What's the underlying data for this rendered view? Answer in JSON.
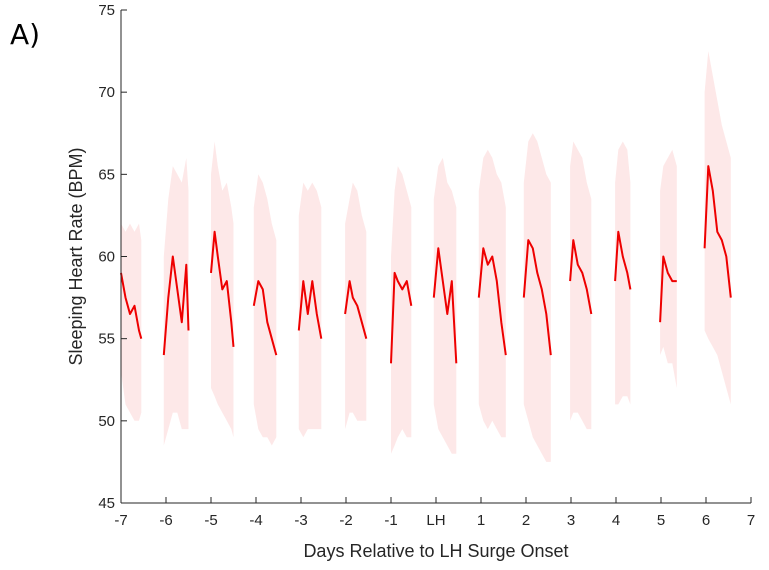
{
  "panel_label": "A)",
  "chart_data": {
    "type": "line",
    "title": "",
    "xlabel": "Days Relative to LH Surge Onset",
    "ylabel": "Sleeping Heart Rate (BPM)",
    "xlim": [
      -7,
      7
    ],
    "ylim": [
      45,
      75
    ],
    "yticks": [
      45,
      50,
      55,
      60,
      65,
      70,
      75
    ],
    "xticks": [
      -7,
      -6,
      -5,
      -4,
      -3,
      -2,
      -1,
      0,
      1,
      2,
      3,
      4,
      5,
      6,
      7
    ],
    "xtick_labels": [
      "-7",
      "-6",
      "-5",
      "-4",
      "-3",
      "-2",
      "-1",
      "LH",
      "1",
      "2",
      "3",
      "4",
      "5",
      "6",
      "7"
    ],
    "grid": false,
    "colors": {
      "line": "#ee0000",
      "band": "#fde8e8",
      "axis": "#262626"
    },
    "segments": [
      {
        "day": -7,
        "x": [
          -7.0,
          -6.9,
          -6.8,
          -6.7,
          -6.6,
          -6.55
        ],
        "mean": [
          59.0,
          57.5,
          56.5,
          57.0,
          55.5,
          55.0
        ],
        "lower": [
          53.0,
          51.0,
          50.5,
          50.0,
          50.0,
          50.5
        ],
        "upper": [
          62.0,
          61.5,
          62.0,
          61.5,
          62.0,
          61.0
        ]
      },
      {
        "day": -6,
        "x": [
          -6.05,
          -5.95,
          -5.85,
          -5.75,
          -5.65,
          -5.55,
          -5.5
        ],
        "mean": [
          54.0,
          57.5,
          60.0,
          58.0,
          56.0,
          59.5,
          55.5
        ],
        "lower": [
          48.5,
          49.5,
          50.5,
          50.5,
          49.5,
          49.5,
          49.5
        ],
        "upper": [
          60.0,
          63.5,
          65.5,
          65.0,
          64.5,
          66.0,
          64.0
        ]
      },
      {
        "day": -5,
        "x": [
          -5.0,
          -4.92,
          -4.85,
          -4.75,
          -4.65,
          -4.55,
          -4.5
        ],
        "mean": [
          59.0,
          61.5,
          60.0,
          58.0,
          58.5,
          56.0,
          54.5
        ],
        "lower": [
          52.0,
          51.5,
          51.0,
          50.5,
          50.0,
          49.5,
          49.0
        ],
        "upper": [
          65.0,
          67.0,
          65.5,
          64.0,
          64.5,
          63.0,
          62.0
        ]
      },
      {
        "day": -4,
        "x": [
          -4.05,
          -3.95,
          -3.85,
          -3.75,
          -3.65,
          -3.55
        ],
        "mean": [
          57.0,
          58.5,
          58.0,
          56.0,
          55.0,
          54.0
        ],
        "lower": [
          51.0,
          49.5,
          49.0,
          49.0,
          48.5,
          49.0
        ],
        "upper": [
          63.0,
          65.0,
          64.5,
          63.5,
          62.0,
          61.0
        ]
      },
      {
        "day": -3,
        "x": [
          -3.05,
          -2.95,
          -2.85,
          -2.75,
          -2.65,
          -2.55
        ],
        "mean": [
          55.5,
          58.5,
          56.5,
          58.5,
          56.5,
          55.0
        ],
        "lower": [
          49.5,
          49.0,
          49.5,
          49.5,
          49.5,
          49.5
        ],
        "upper": [
          62.5,
          64.5,
          64.0,
          64.5,
          64.0,
          63.0
        ]
      },
      {
        "day": -2,
        "x": [
          -2.02,
          -1.92,
          -1.85,
          -1.75,
          -1.65,
          -1.55
        ],
        "mean": [
          56.5,
          58.5,
          57.5,
          57.0,
          56.0,
          55.0
        ],
        "lower": [
          49.5,
          50.5,
          50.5,
          50.0,
          50.0,
          50.0
        ],
        "upper": [
          62.0,
          63.5,
          64.5,
          64.0,
          62.5,
          61.5
        ]
      },
      {
        "day": -1,
        "x": [
          -1.0,
          -0.92,
          -0.85,
          -0.75,
          -0.65,
          -0.55
        ],
        "mean": [
          53.5,
          59.0,
          58.5,
          58.0,
          58.5,
          57.0
        ],
        "lower": [
          48.0,
          48.5,
          49.0,
          49.5,
          49.0,
          49.0
        ],
        "upper": [
          60.0,
          64.0,
          65.5,
          65.0,
          64.0,
          63.0
        ]
      },
      {
        "day": 0,
        "x": [
          -0.05,
          0.05,
          0.15,
          0.25,
          0.35,
          0.45
        ],
        "mean": [
          57.5,
          60.5,
          58.5,
          56.5,
          58.5,
          53.5
        ],
        "lower": [
          51.0,
          49.5,
          49.0,
          48.5,
          48.0,
          48.0
        ],
        "upper": [
          63.5,
          65.5,
          66.0,
          64.5,
          64.0,
          63.0
        ]
      },
      {
        "day": 1,
        "x": [
          0.95,
          1.05,
          1.15,
          1.25,
          1.35,
          1.45,
          1.55
        ],
        "mean": [
          57.5,
          60.5,
          59.5,
          60.0,
          58.5,
          56.0,
          54.0
        ],
        "lower": [
          51.0,
          50.0,
          49.5,
          50.0,
          49.5,
          49.0,
          49.0
        ],
        "upper": [
          64.0,
          66.0,
          66.5,
          66.0,
          65.0,
          64.5,
          63.0
        ]
      },
      {
        "day": 2,
        "x": [
          1.95,
          2.05,
          2.15,
          2.25,
          2.35,
          2.45,
          2.55
        ],
        "mean": [
          57.5,
          61.0,
          60.5,
          59.0,
          58.0,
          56.5,
          54.0
        ],
        "lower": [
          51.0,
          50.0,
          49.0,
          48.5,
          48.0,
          47.5,
          47.5
        ],
        "upper": [
          64.5,
          67.0,
          67.5,
          67.0,
          66.0,
          65.0,
          64.5
        ]
      },
      {
        "day": 3,
        "x": [
          2.98,
          3.05,
          3.15,
          3.25,
          3.35,
          3.45
        ],
        "mean": [
          58.5,
          61.0,
          59.5,
          59.0,
          58.0,
          56.5
        ],
        "lower": [
          50.0,
          50.5,
          50.5,
          50.0,
          49.5,
          49.5
        ],
        "upper": [
          65.5,
          67.0,
          66.5,
          66.0,
          64.5,
          63.5
        ]
      },
      {
        "day": 4,
        "x": [
          3.98,
          4.05,
          4.15,
          4.25,
          4.32
        ],
        "mean": [
          58.5,
          61.5,
          60.0,
          59.0,
          58.0
        ],
        "lower": [
          51.0,
          51.0,
          51.5,
          51.5,
          51.0
        ],
        "upper": [
          64.5,
          66.5,
          67.0,
          66.5,
          64.5
        ]
      },
      {
        "day": 5,
        "x": [
          4.98,
          5.05,
          5.15,
          5.25,
          5.35
        ],
        "mean": [
          56.0,
          60.0,
          59.0,
          58.5,
          58.5
        ],
        "lower": [
          54.0,
          54.5,
          53.5,
          53.5,
          52.0
        ],
        "upper": [
          64.0,
          65.5,
          66.0,
          66.5,
          65.5
        ]
      },
      {
        "day": 6,
        "x": [
          5.97,
          6.05,
          6.15,
          6.25,
          6.35,
          6.45,
          6.55
        ],
        "mean": [
          60.5,
          65.5,
          64.0,
          61.5,
          61.0,
          60.0,
          57.5
        ],
        "lower": [
          55.5,
          55.0,
          54.5,
          54.0,
          53.0,
          52.0,
          51.0
        ],
        "upper": [
          70.0,
          72.5,
          71.0,
          69.5,
          68.0,
          67.0,
          66.0
        ]
      }
    ]
  }
}
